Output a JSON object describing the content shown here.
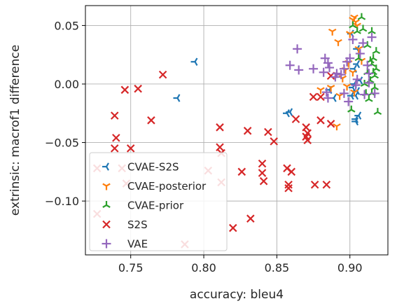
{
  "chart_data": {
    "type": "scatter",
    "xlabel": "accuracy: bleu4",
    "ylabel": "extrinsic: macrof1 difference",
    "xlim": [
      0.719,
      0.926
    ],
    "ylim": [
      -0.146,
      0.067
    ],
    "xticks": [
      0.75,
      0.8,
      0.85,
      0.9
    ],
    "xtick_labels": [
      "0.75",
      "0.80",
      "0.85",
      "0.90"
    ],
    "yticks": [
      0.05,
      0.0,
      -0.05,
      -0.1
    ],
    "ytick_labels": [
      "0.05",
      "0.00",
      "−0.05",
      "−0.10"
    ],
    "grid": true,
    "legend_position": "lower-left",
    "series": [
      {
        "name": "CVAE-S2S",
        "color": "#1f77b4",
        "marker": "tri_left",
        "points": [
          [
            0.794,
            0.019
          ],
          [
            0.782,
            -0.012
          ],
          [
            0.859,
            -0.024
          ],
          [
            0.857,
            -0.025
          ],
          [
            0.886,
            -0.005
          ],
          [
            0.889,
            -0.012
          ],
          [
            0.902,
            -0.003
          ],
          [
            0.901,
            -0.01
          ],
          [
            0.904,
            -0.01
          ],
          [
            0.905,
            -0.006
          ],
          [
            0.904,
            -0.03
          ],
          [
            0.906,
            -0.027
          ],
          [
            0.904,
            -0.032
          ],
          [
            0.903,
            0.0
          ],
          [
            0.903,
            0.013
          ],
          [
            0.905,
            0.017
          ],
          [
            0.907,
            0.003
          ],
          [
            0.901,
            0.043
          ],
          [
            0.905,
            0.03
          ]
        ]
      },
      {
        "name": "CVAE-posterior",
        "color": "#ff7f0e",
        "marker": "tri_down",
        "points": [
          [
            0.891,
            -0.036
          ],
          [
            0.893,
            -0.01
          ],
          [
            0.88,
            -0.005
          ],
          [
            0.887,
            -0.003
          ],
          [
            0.888,
            0.045
          ],
          [
            0.892,
            0.036
          ],
          [
            0.895,
            0.005
          ],
          [
            0.897,
            0.012
          ],
          [
            0.899,
            0.018
          ],
          [
            0.9,
            0.043
          ],
          [
            0.902,
            0.055
          ],
          [
            0.903,
            0.057
          ],
          [
            0.904,
            0.053
          ],
          [
            0.905,
            0.05
          ],
          [
            0.906,
            0.03
          ],
          [
            0.908,
            0.02
          ],
          [
            0.902,
            0.01
          ],
          [
            0.898,
            -0.002
          ],
          [
            0.903,
            -0.007
          ]
        ]
      },
      {
        "name": "CVAE-prior",
        "color": "#2ca02c",
        "marker": "tri_up",
        "points": [
          [
            0.902,
            0.05
          ],
          [
            0.905,
            0.045
          ],
          [
            0.908,
            0.057
          ],
          [
            0.912,
            0.033
          ],
          [
            0.914,
            0.02
          ],
          [
            0.915,
            0.017
          ],
          [
            0.916,
            0.01
          ],
          [
            0.917,
            0.007
          ],
          [
            0.918,
            0.028
          ],
          [
            0.919,
            -0.024
          ],
          [
            0.913,
            -0.013
          ],
          [
            0.911,
            -0.008
          ],
          [
            0.91,
            0.0
          ],
          [
            0.917,
            -0.003
          ],
          [
            0.916,
            0.022
          ],
          [
            0.914,
            0.003
          ],
          [
            0.918,
            0.013
          ],
          [
            0.915,
            -0.008
          ],
          [
            0.906,
            0.022
          ],
          [
            0.901,
            -0.022
          ],
          [
            0.912,
            0.01
          ],
          [
            0.909,
            0.047
          ],
          [
            0.915,
            0.045
          ]
        ]
      },
      {
        "name": "S2S",
        "color": "#d62728",
        "marker": "x",
        "points": [
          [
            0.772,
            0.008
          ],
          [
            0.746,
            -0.005
          ],
          [
            0.755,
            -0.004
          ],
          [
            0.739,
            -0.027
          ],
          [
            0.764,
            -0.031
          ],
          [
            0.74,
            -0.046
          ],
          [
            0.739,
            -0.055
          ],
          [
            0.75,
            -0.055
          ],
          [
            0.744,
            -0.072
          ],
          [
            0.727,
            -0.072
          ],
          [
            0.747,
            -0.085
          ],
          [
            0.727,
            -0.111
          ],
          [
            0.787,
            -0.137
          ],
          [
            0.803,
            -0.074
          ],
          [
            0.811,
            -0.037
          ],
          [
            0.811,
            -0.054
          ],
          [
            0.812,
            -0.059
          ],
          [
            0.812,
            -0.084
          ],
          [
            0.82,
            -0.123
          ],
          [
            0.826,
            -0.075
          ],
          [
            0.832,
            -0.115
          ],
          [
            0.83,
            -0.04
          ],
          [
            0.84,
            -0.068
          ],
          [
            0.84,
            -0.076
          ],
          [
            0.841,
            -0.083
          ],
          [
            0.844,
            -0.041
          ],
          [
            0.848,
            -0.049
          ],
          [
            0.857,
            -0.072
          ],
          [
            0.858,
            -0.086
          ],
          [
            0.858,
            -0.089
          ],
          [
            0.86,
            -0.075
          ],
          [
            0.863,
            -0.03
          ],
          [
            0.87,
            -0.037
          ],
          [
            0.87,
            -0.045
          ],
          [
            0.871,
            -0.042
          ],
          [
            0.871,
            -0.048
          ],
          [
            0.876,
            -0.086
          ],
          [
            0.88,
            -0.031
          ],
          [
            0.884,
            -0.086
          ],
          [
            0.887,
            -0.034
          ],
          [
            0.887,
            0.007
          ],
          [
            0.875,
            -0.011
          ],
          [
            0.88,
            -0.011
          ]
        ]
      },
      {
        "name": "VAE",
        "color": "#9467bd",
        "marker": "plus",
        "points": [
          [
            0.859,
            0.016
          ],
          [
            0.864,
            0.03
          ],
          [
            0.865,
            0.012
          ],
          [
            0.875,
            0.013
          ],
          [
            0.882,
            0.01
          ],
          [
            0.883,
            0.022
          ],
          [
            0.885,
            0.018
          ],
          [
            0.885,
            -0.012
          ],
          [
            0.884,
            -0.007
          ],
          [
            0.886,
            0.014
          ],
          [
            0.89,
            0.006
          ],
          [
            0.891,
            0.009
          ],
          [
            0.894,
            0.008
          ],
          [
            0.896,
            0.013
          ],
          [
            0.896,
            -0.008
          ],
          [
            0.898,
            0.019
          ],
          [
            0.899,
            -0.015
          ],
          [
            0.9,
            0.022
          ],
          [
            0.902,
            0.038
          ],
          [
            0.904,
            -0.001
          ],
          [
            0.905,
            0.004
          ],
          [
            0.907,
            0.026
          ],
          [
            0.909,
            0.035
          ],
          [
            0.912,
            0.016
          ],
          [
            0.915,
            0.04
          ],
          [
            0.91,
            -0.009
          ],
          [
            0.913,
            0.009
          ],
          [
            0.917,
            -0.008
          ],
          [
            0.913,
            0.001
          ]
        ]
      }
    ]
  }
}
